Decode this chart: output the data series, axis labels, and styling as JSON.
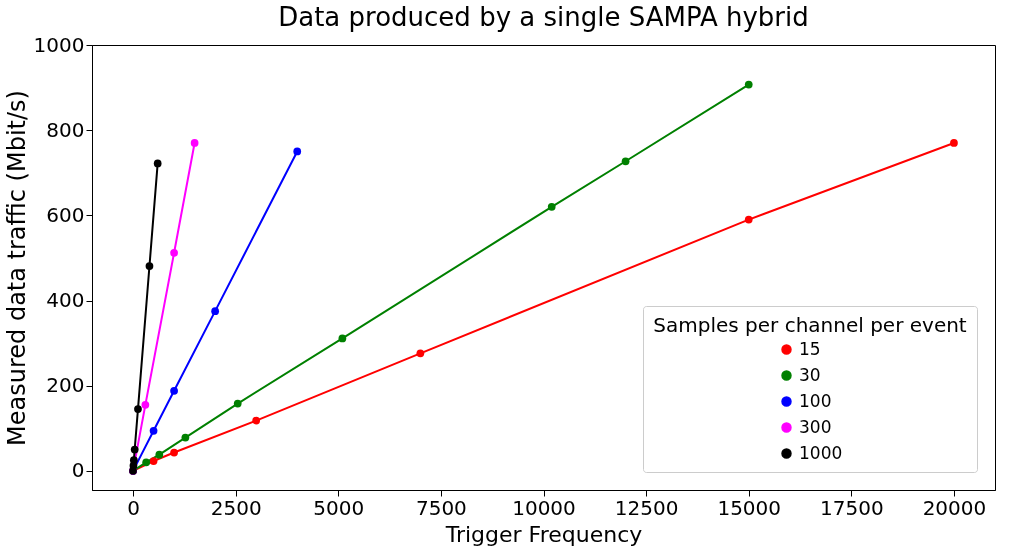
{
  "chart_data": {
    "type": "line",
    "title": "Data produced by a single SAMPA hybrid",
    "xlabel": "Trigger Frequency",
    "ylabel": "Measured data traffic (Mbit/s)",
    "legend_title": "Samples per channel per event",
    "legend": "bottom right",
    "marker": "circle",
    "line_style": "solid",
    "grid": false,
    "xlim": [
      -1000,
      21000
    ],
    "ylim": [
      -45,
      1000
    ],
    "xticks": [
      0,
      2500,
      5000,
      7500,
      10000,
      12500,
      15000,
      17500,
      20000
    ],
    "yticks": [
      0,
      200,
      400,
      600,
      800,
      1000
    ],
    "series": [
      {
        "name": "15",
        "color": "#ff0000",
        "x": [
          0,
          500,
          1000,
          3000,
          7000,
          15000,
          20000
        ],
        "values": [
          0,
          23,
          43,
          118,
          276,
          590,
          770
        ]
      },
      {
        "name": "30",
        "color": "#008000",
        "x": [
          0,
          320,
          640,
          1275,
          2550,
          5100,
          10200,
          12000,
          15000
        ],
        "values": [
          0,
          20,
          38,
          78,
          158,
          311,
          620,
          727,
          907
        ]
      },
      {
        "name": "100",
        "color": "#0000ff",
        "x": [
          0,
          500,
          1000,
          2000,
          4000
        ],
        "values": [
          0,
          94,
          188,
          375,
          750
        ]
      },
      {
        "name": "300",
        "color": "#ff00ff",
        "x": [
          0,
          300,
          1000,
          1500
        ],
        "values": [
          0,
          155,
          512,
          770
        ]
      },
      {
        "name": "1000",
        "color": "#000000",
        "x": [
          0,
          10,
          20,
          40,
          120,
          400,
          600
        ],
        "values": [
          0,
          12,
          25,
          50,
          145,
          481,
          722
        ]
      }
    ]
  }
}
